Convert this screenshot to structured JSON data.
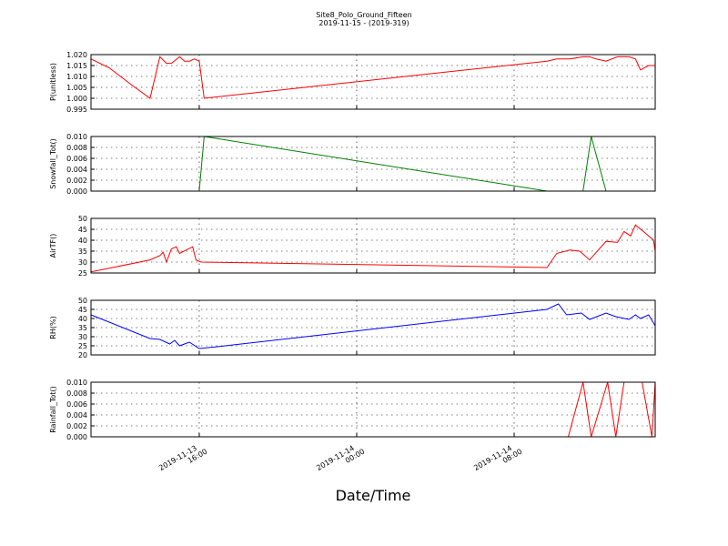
{
  "chart_data": [
    {
      "type": "line",
      "title": "Site8_Polo_Ground_Fifteen",
      "subtitle": "2019-11-15 - (2019-319)",
      "ylabel": "P(unitless)",
      "color": "#ff0000",
      "grid": true,
      "xlim": [
        "2019-11-13 10:30",
        "2019-11-14 15:10"
      ],
      "xticks": [
        "2019-11-13 16:00",
        "2019-11-14 00:00",
        "2019-11-14 08:00"
      ],
      "ylim": [
        0.995,
        1.02
      ],
      "yticks": [
        0.995,
        {
          "value": 1.0,
          "label": "1.000"
        },
        1.005,
        {
          "value": 1.01,
          "label": "1.010"
        },
        1.015,
        {
          "value": 1.02,
          "label": "1.020"
        }
      ],
      "x": [
        "2019-11-13 10:30",
        "2019-11-13 11:25",
        "2019-11-13 12:35",
        "2019-11-13 13:30",
        "2019-11-13 14:00",
        "2019-11-13 14:20",
        "2019-11-13 14:35",
        "2019-11-13 15:00",
        "2019-11-13 15:15",
        "2019-11-13 15:30",
        "2019-11-13 15:45",
        "2019-11-13 16:00",
        "2019-11-13 16:15",
        "2019-11-14 09:40",
        "2019-11-14 10:10",
        "2019-11-14 10:50",
        "2019-11-14 11:30",
        "2019-11-14 11:50",
        "2019-11-14 12:10",
        "2019-11-14 12:40",
        "2019-11-14 13:15",
        "2019-11-14 13:50",
        "2019-11-14 14:10",
        "2019-11-14 14:25",
        "2019-11-14 14:50",
        "2019-11-14 15:10"
      ],
      "values": [
        1.018,
        1.014,
        1.006,
        1.0,
        1.019,
        1.016,
        1.016,
        1.019,
        1.017,
        1.017,
        1.018,
        1.017,
        1.0,
        1.017,
        1.018,
        1.018,
        1.019,
        1.019,
        1.018,
        1.017,
        1.019,
        1.019,
        1.018,
        1.013,
        1.015,
        1.015
      ]
    },
    {
      "type": "line",
      "ylabel": "Snowfall_Tot()",
      "color": "#008000",
      "grid": true,
      "xlim": [
        "2019-11-13 10:30",
        "2019-11-14 15:10"
      ],
      "xticks": [
        "2019-11-13 16:00",
        "2019-11-14 00:00",
        "2019-11-14 08:00"
      ],
      "ylim": [
        0,
        0.01
      ],
      "yticks": [
        {
          "value": 0,
          "label": "0.000"
        },
        0.002,
        0.004,
        0.006,
        0.008,
        {
          "value": 0.01,
          "label": "0.010"
        }
      ],
      "x": [
        "2019-11-13 10:30",
        "2019-11-13 16:00",
        "2019-11-13 16:15",
        "2019-11-14 09:40",
        "2019-11-14 11:30",
        "2019-11-14 11:55",
        "2019-11-14 12:40",
        "2019-11-14 15:10"
      ],
      "values": [
        0,
        0,
        0.01,
        0,
        0,
        0.01,
        0,
        0
      ]
    },
    {
      "type": "line",
      "ylabel": "AirTF()",
      "color": "#ff0000",
      "grid": true,
      "xlim": [
        "2019-11-13 10:30",
        "2019-11-14 15:10"
      ],
      "xticks": [
        "2019-11-13 16:00",
        "2019-11-14 00:00",
        "2019-11-14 08:00"
      ],
      "ylim": [
        25,
        50
      ],
      "yticks": [
        25,
        30,
        35,
        40,
        45,
        50
      ],
      "x": [
        "2019-11-13 10:30",
        "2019-11-13 13:30",
        "2019-11-13 14:00",
        "2019-11-13 14:10",
        "2019-11-13 14:20",
        "2019-11-13 14:35",
        "2019-11-13 14:50",
        "2019-11-13 15:00",
        "2019-11-13 15:40",
        "2019-11-13 15:50",
        "2019-11-13 16:05",
        "2019-11-14 09:40",
        "2019-11-14 10:10",
        "2019-11-14 10:50",
        "2019-11-14 11:20",
        "2019-11-14 11:50",
        "2019-11-14 12:40",
        "2019-11-14 13:15",
        "2019-11-14 13:35",
        "2019-11-14 13:55",
        "2019-11-14 14:10",
        "2019-11-14 14:50",
        "2019-11-14 15:05",
        "2019-11-14 15:10"
      ],
      "values": [
        25.5,
        31,
        33,
        34.5,
        30,
        36,
        37,
        34,
        37,
        31,
        30,
        27.5,
        34,
        35.5,
        35,
        31,
        39.5,
        39,
        44,
        42,
        47,
        42,
        40,
        35
      ]
    },
    {
      "type": "line",
      "ylabel": "RH(%)",
      "color": "#0000ff",
      "grid": true,
      "xlim": [
        "2019-11-13 10:30",
        "2019-11-14 15:10"
      ],
      "xticks": [
        "2019-11-13 16:00",
        "2019-11-14 00:00",
        "2019-11-14 08:00"
      ],
      "ylim": [
        20,
        50
      ],
      "yticks": [
        20,
        25,
        30,
        35,
        40,
        45,
        50
      ],
      "x": [
        "2019-11-13 10:30",
        "2019-11-13 13:30",
        "2019-11-13 14:00",
        "2019-11-13 14:30",
        "2019-11-13 14:45",
        "2019-11-13 15:00",
        "2019-11-13 15:30",
        "2019-11-13 16:00",
        "2019-11-13 16:55",
        "2019-11-14 09:40",
        "2019-11-14 10:15",
        "2019-11-14 10:40",
        "2019-11-14 11:25",
        "2019-11-14 11:50",
        "2019-11-14 12:40",
        "2019-11-14 13:10",
        "2019-11-14 13:50",
        "2019-11-14 14:10",
        "2019-11-14 14:25",
        "2019-11-14 14:50",
        "2019-11-14 15:10"
      ],
      "values": [
        42,
        29,
        28.5,
        26,
        28,
        25,
        27,
        23.5,
        24.5,
        45,
        48,
        42,
        43,
        39.5,
        43,
        41,
        39.5,
        42,
        40,
        42,
        36
      ]
    },
    {
      "type": "line",
      "ylabel": "Rainfall_Tot()",
      "xlabel": "Date/Time",
      "color": "#ff0000",
      "grid": true,
      "xlim": [
        "2019-11-13 10:30",
        "2019-11-14 15:10"
      ],
      "xticks": [
        {
          "value": "2019-11-13 16:00",
          "label": "2019-11-13\n16:00"
        },
        {
          "value": "2019-11-14 00:00",
          "label": "2019-11-14\n00:00"
        },
        {
          "value": "2019-11-14 08:00",
          "label": "2019-11-14\n08:00"
        }
      ],
      "ylim": [
        0,
        0.01
      ],
      "yticks": [
        {
          "value": 0,
          "label": "0.000"
        },
        0.002,
        0.004,
        0.006,
        0.008,
        {
          "value": 0.01,
          "label": "0.010"
        }
      ],
      "x": [
        "2019-11-13 10:30",
        "2019-11-14 10:45",
        "2019-11-14 11:30",
        "2019-11-14 11:55",
        "2019-11-14 12:45",
        "2019-11-14 13:10",
        "2019-11-14 13:35",
        "2019-11-14 14:30",
        "2019-11-14 15:00",
        "2019-11-14 15:10"
      ],
      "values": [
        0,
        0,
        0.01,
        0,
        0.01,
        0,
        0.01,
        0.01,
        0,
        0.01
      ]
    }
  ]
}
